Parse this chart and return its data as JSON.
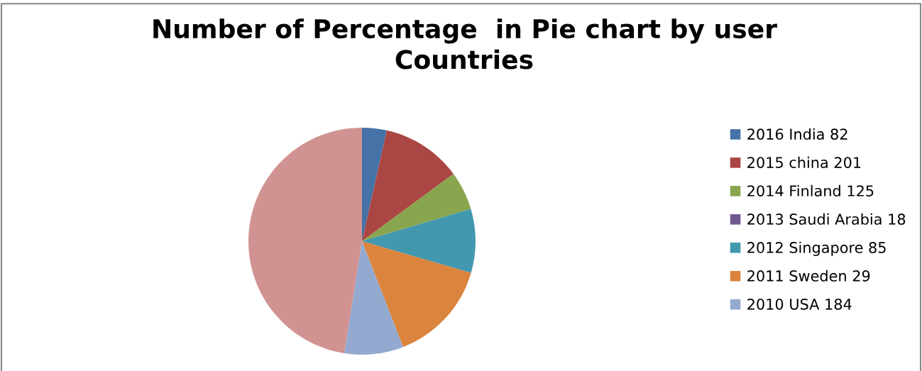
{
  "chart_data": {
    "type": "pie",
    "title": "Number of Percentage  in Pie chart by user\nCountries",
    "categories": [
      "2016 India 82",
      "2015 china 201",
      "2014 Finland 125",
      "2013 Saudi Arabia 18",
      "2012 Singapore 85",
      "2011 Sweden 29",
      "2010 USA 184",
      null
    ],
    "values": [
      3.5,
      11.4,
      5.5,
      0,
      9.1,
      14.6,
      8.4,
      47.5
    ],
    "colors": [
      "#4572a7",
      "#aa4643",
      "#89a54e",
      "#71588f",
      "#4198af",
      "#db843d",
      "#93a9cf",
      "#d19392"
    ],
    "legend": "right"
  }
}
